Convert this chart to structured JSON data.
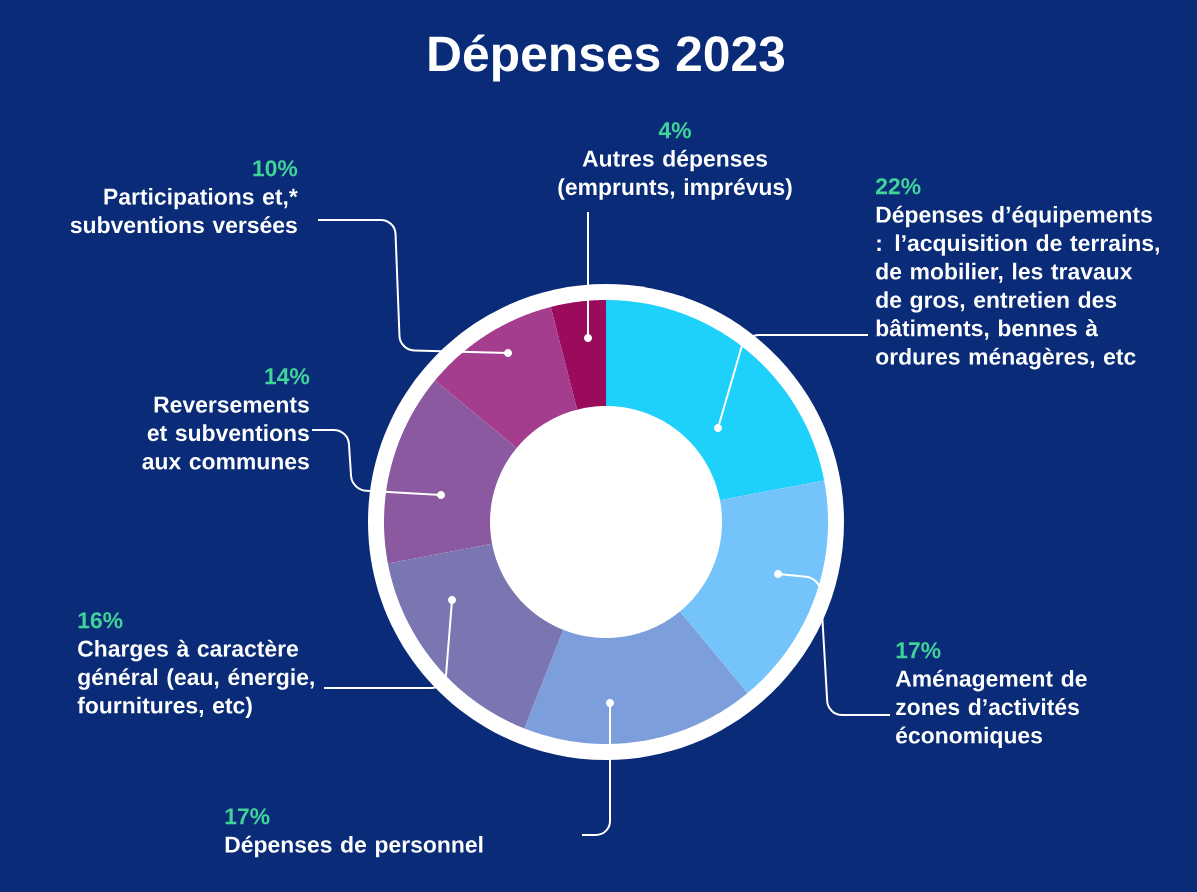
{
  "chart_data": {
    "type": "donut",
    "title": "Dépenses 2023",
    "categories": [
      "Dépenses d’équipements : l’acquisition de terrains, de mobilier, les travaux de gros, entretien des bâtiments, bennes à ordures ménagères, etc",
      "Aménagement de zones d’activités économiques",
      "Dépenses de personnel",
      "Charges à caractère général (eau, énergie, fournitures, etc)",
      "Reversements et subventions aux communes",
      "Participations et,* subventions versées",
      "Autres dépenses (emprunts, imprévus)"
    ],
    "values": [
      22,
      17,
      17,
      16,
      14,
      10,
      4
    ],
    "colors": [
      "#1dd1fa",
      "#74c3fb",
      "#7c9fdb",
      "#7a76b2",
      "#8a599f",
      "#a43d8d",
      "#9a0b5b"
    ],
    "value_labels": [
      "22%",
      "17%",
      "17%",
      "16%",
      "14%",
      "10%",
      "4%"
    ]
  }
}
